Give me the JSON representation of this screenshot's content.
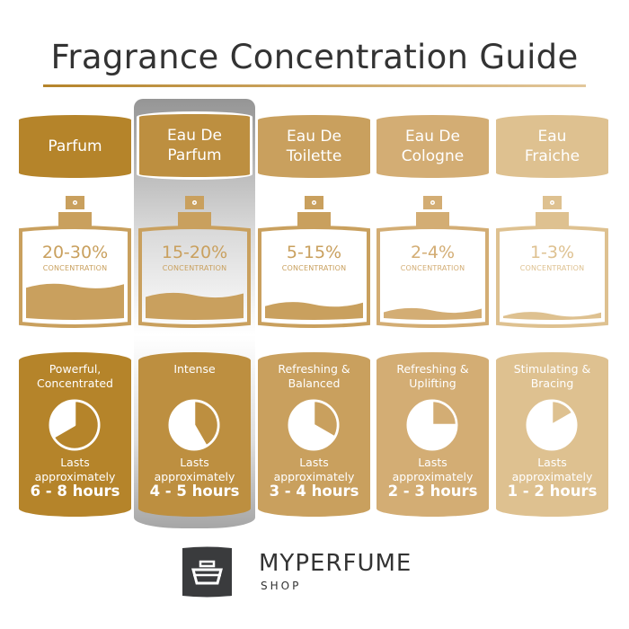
{
  "title": "Fragrance Concentration Guide",
  "concentration_label": "CONCENTRATION",
  "lasts_label": "Lasts\napproximately",
  "colors": {
    "accent": "#b5842a",
    "text": "#333333"
  },
  "types": [
    {
      "name": "Parfum",
      "concentration": "20-30%",
      "fill_level": 0.42,
      "description": "Powerful,\nConcentrated",
      "duration": "6 - 8 hours",
      "max_hours": 8,
      "color": "#b5842a",
      "bottle_color": "#c9a05e",
      "highlighted": false
    },
    {
      "name": "Eau De\nParfum",
      "concentration": "15-20%",
      "fill_level": 0.3,
      "description": "Intense",
      "duration": "4 - 5 hours",
      "max_hours": 5,
      "color": "#bd8f40",
      "bottle_color": "#c9a05e",
      "highlighted": true
    },
    {
      "name": "Eau De\nToilette",
      "concentration": "5-15%",
      "fill_level": 0.18,
      "description": "Refreshing &\nBalanced",
      "duration": "3 - 4 hours",
      "max_hours": 4,
      "color": "#c9a05e",
      "bottle_color": "#c9a05e",
      "highlighted": false
    },
    {
      "name": "Eau De\nCologne",
      "concentration": "2-4%",
      "fill_level": 0.1,
      "description": "Refreshing &\nUplifting",
      "duration": "2 - 3 hours",
      "max_hours": 3,
      "color": "#d3ad74",
      "bottle_color": "#d3ad74",
      "highlighted": false
    },
    {
      "name": "Eau\nFraiche",
      "concentration": "1-3%",
      "fill_level": 0.05,
      "description": "Stimulating &\nBracing",
      "duration": "1 - 2 hours",
      "max_hours": 2,
      "color": "#dec190",
      "bottle_color": "#dec190",
      "highlighted": false
    }
  ],
  "brand": {
    "name": "MYPERFUME",
    "sub": "SHOP",
    "logo_color": "#3a3b3d"
  }
}
